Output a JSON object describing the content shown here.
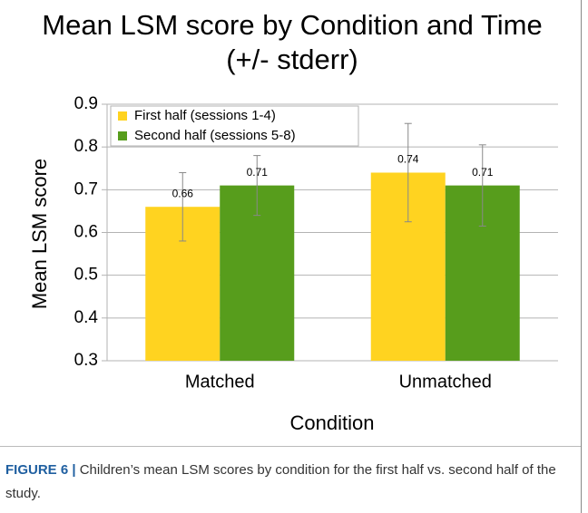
{
  "chart_data": {
    "type": "bar",
    "title": [
      "Mean LSM score by Condition and Time",
      "(+/- stderr)"
    ],
    "x_label": "Condition",
    "y_label": "Mean LSM score",
    "categories": [
      "Matched",
      "Unmatched"
    ],
    "series": [
      {
        "name": "First half (sessions 1-4)",
        "color": "#ffd320",
        "values": [
          0.66,
          0.74
        ],
        "errors": [
          0.08,
          0.115
        ]
      },
      {
        "name": "Second half (sessions 5-8)",
        "color": "#579d1c",
        "values": [
          0.71,
          0.71
        ],
        "errors": [
          0.07,
          0.095
        ]
      }
    ],
    "ylim": [
      0.3,
      0.9
    ],
    "yticks": [
      0.3,
      0.4,
      0.5,
      0.6,
      0.7,
      0.8,
      0.9
    ],
    "grid": true,
    "legend": "top-left",
    "value_labels_shown": true
  },
  "caption": {
    "label": "FIGURE 6 |",
    "text": "Children’s mean LSM scores by condition for the first half vs. second half of the study."
  }
}
